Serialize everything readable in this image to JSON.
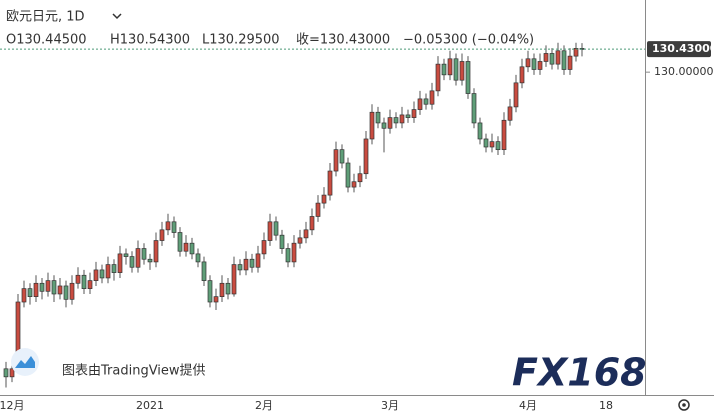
{
  "chart_data": {
    "type": "candlestick",
    "title": "欧元日元, 1D",
    "ohlc_legend": [
      "O130.44500",
      "H130.54300",
      "L130.29500",
      "收=130.43000",
      "−0.05300 (−0.04%)"
    ],
    "attribution": "图表由TradingView提供",
    "logo": "FX168",
    "up_color": "#c94c40",
    "down_color": "#5f9e78",
    "ylim": [
      123.96,
      131.35
    ],
    "yticks": [
      {
        "value": 130,
        "label": "130.00000"
      }
    ],
    "last_price": {
      "value": 130.43,
      "label": "130.43000"
    },
    "categories": [
      null,
      "12月",
      null,
      null,
      null,
      null,
      null,
      null,
      null,
      null,
      null,
      null,
      null,
      null,
      null,
      null,
      null,
      null,
      null,
      null,
      null,
      null,
      null,
      null,
      "2021",
      null,
      null,
      null,
      null,
      null,
      null,
      null,
      null,
      null,
      null,
      null,
      null,
      null,
      null,
      null,
      null,
      null,
      null,
      "2月",
      null,
      null,
      null,
      null,
      null,
      null,
      null,
      null,
      null,
      null,
      null,
      null,
      null,
      null,
      null,
      null,
      null,
      null,
      null,
      null,
      "3月",
      null,
      null,
      null,
      null,
      null,
      null,
      null,
      null,
      null,
      null,
      null,
      null,
      null,
      null,
      null,
      null,
      null,
      null,
      null,
      null,
      null,
      null,
      "4月",
      null,
      null,
      null,
      null,
      null,
      null,
      null,
      null,
      null,
      null,
      null,
      null,
      "18"
    ],
    "open": [
      124.45,
      124.3,
      124.45,
      125.7,
      125.95,
      125.8,
      126.05,
      125.9,
      126.1,
      125.85,
      126.0,
      125.75,
      126.05,
      126.2,
      125.95,
      126.1,
      126.3,
      126.15,
      126.4,
      126.25,
      126.6,
      126.55,
      126.35,
      126.7,
      126.5,
      126.45,
      126.85,
      127.05,
      127.2,
      127.0,
      126.65,
      126.8,
      126.6,
      126.45,
      126.1,
      125.7,
      125.8,
      126.05,
      125.85,
      126.4,
      126.3,
      126.5,
      126.35,
      126.6,
      126.85,
      127.2,
      126.95,
      126.7,
      126.45,
      126.8,
      126.9,
      127.05,
      127.3,
      127.55,
      127.7,
      128.15,
      128.55,
      128.3,
      127.85,
      127.95,
      128.1,
      128.75,
      129.25,
      129.05,
      128.95,
      129.15,
      129.05,
      129.2,
      129.15,
      129.3,
      129.5,
      129.4,
      129.65,
      130.15,
      129.95,
      130.25,
      129.85,
      130.2,
      129.6,
      129.05,
      128.75,
      128.6,
      128.7,
      128.55,
      129.1,
      129.35,
      129.8,
      130.1,
      130.25,
      130.05,
      130.2,
      130.35,
      130.15,
      130.4,
      130.05,
      130.3,
      130.445,
      null,
      null,
      null,
      null
    ],
    "high": [
      124.58,
      124.6,
      125.85,
      126.1,
      126.05,
      126.2,
      126.15,
      126.25,
      126.2,
      126.15,
      126.1,
      126.2,
      126.35,
      126.3,
      126.25,
      126.45,
      126.4,
      126.55,
      126.5,
      126.75,
      126.7,
      126.65,
      126.85,
      126.8,
      126.6,
      127.0,
      127.2,
      127.35,
      127.3,
      127.1,
      126.95,
      126.9,
      126.7,
      126.55,
      126.2,
      125.95,
      126.2,
      126.15,
      126.55,
      126.5,
      126.65,
      126.6,
      126.75,
      127.0,
      127.35,
      127.3,
      127.05,
      126.8,
      126.95,
      127.05,
      127.2,
      127.45,
      127.7,
      127.85,
      128.3,
      128.7,
      128.65,
      128.4,
      128.1,
      128.25,
      128.9,
      129.4,
      129.35,
      129.15,
      129.3,
      129.25,
      129.35,
      129.3,
      129.45,
      129.65,
      129.6,
      129.8,
      130.3,
      130.25,
      130.4,
      130.35,
      130.35,
      130.3,
      129.7,
      129.15,
      128.85,
      128.85,
      128.8,
      129.25,
      129.5,
      129.95,
      130.25,
      130.4,
      130.35,
      130.35,
      130.5,
      130.45,
      130.55,
      130.5,
      130.45,
      130.55,
      130.543,
      null,
      null,
      null,
      null
    ],
    "low": [
      124.1,
      124.2,
      124.4,
      125.6,
      125.65,
      125.7,
      125.75,
      125.8,
      125.7,
      125.75,
      125.6,
      125.65,
      125.95,
      125.85,
      125.85,
      126.0,
      126.05,
      126.05,
      126.1,
      126.15,
      126.4,
      126.25,
      126.25,
      126.4,
      126.3,
      126.35,
      126.75,
      126.95,
      126.9,
      126.55,
      126.55,
      126.5,
      126.35,
      126.0,
      125.6,
      125.55,
      125.7,
      125.75,
      125.8,
      126.2,
      126.2,
      126.25,
      126.25,
      126.5,
      126.75,
      126.85,
      126.6,
      126.35,
      126.35,
      126.7,
      126.8,
      126.95,
      127.2,
      127.45,
      127.6,
      128.05,
      128.2,
      127.75,
      127.75,
      127.85,
      128.0,
      128.65,
      128.95,
      128.5,
      128.85,
      128.95,
      128.95,
      129.05,
      129.05,
      129.2,
      129.3,
      129.3,
      129.55,
      129.85,
      129.85,
      129.75,
      129.75,
      129.5,
      128.95,
      128.65,
      128.5,
      128.5,
      128.45,
      128.45,
      129.0,
      129.25,
      129.7,
      130.0,
      129.95,
      129.95,
      130.1,
      130.05,
      130.05,
      129.95,
      129.95,
      130.2,
      130.295,
      null,
      null,
      null,
      null
    ],
    "close": [
      124.3,
      124.45,
      125.7,
      125.95,
      125.8,
      126.05,
      125.9,
      126.1,
      125.85,
      126.0,
      125.75,
      126.05,
      126.2,
      125.95,
      126.1,
      126.3,
      126.15,
      126.4,
      126.25,
      126.6,
      126.55,
      126.35,
      126.7,
      126.5,
      126.45,
      126.85,
      127.05,
      127.2,
      127.0,
      126.65,
      126.8,
      126.6,
      126.45,
      126.1,
      125.7,
      125.8,
      126.05,
      125.85,
      126.4,
      126.3,
      126.5,
      126.35,
      126.6,
      126.85,
      127.2,
      126.95,
      126.7,
      126.45,
      126.8,
      126.9,
      127.05,
      127.3,
      127.55,
      127.7,
      128.15,
      128.55,
      128.3,
      127.85,
      127.95,
      128.1,
      128.75,
      129.25,
      129.05,
      128.95,
      129.15,
      129.05,
      129.2,
      129.15,
      129.3,
      129.5,
      129.4,
      129.65,
      130.15,
      129.95,
      130.25,
      129.85,
      130.2,
      129.6,
      129.05,
      128.75,
      128.6,
      128.7,
      128.55,
      129.1,
      129.35,
      129.8,
      130.1,
      130.25,
      130.05,
      130.2,
      130.35,
      130.15,
      130.4,
      130.05,
      130.3,
      130.445,
      130.43,
      null,
      null,
      null,
      null
    ]
  }
}
